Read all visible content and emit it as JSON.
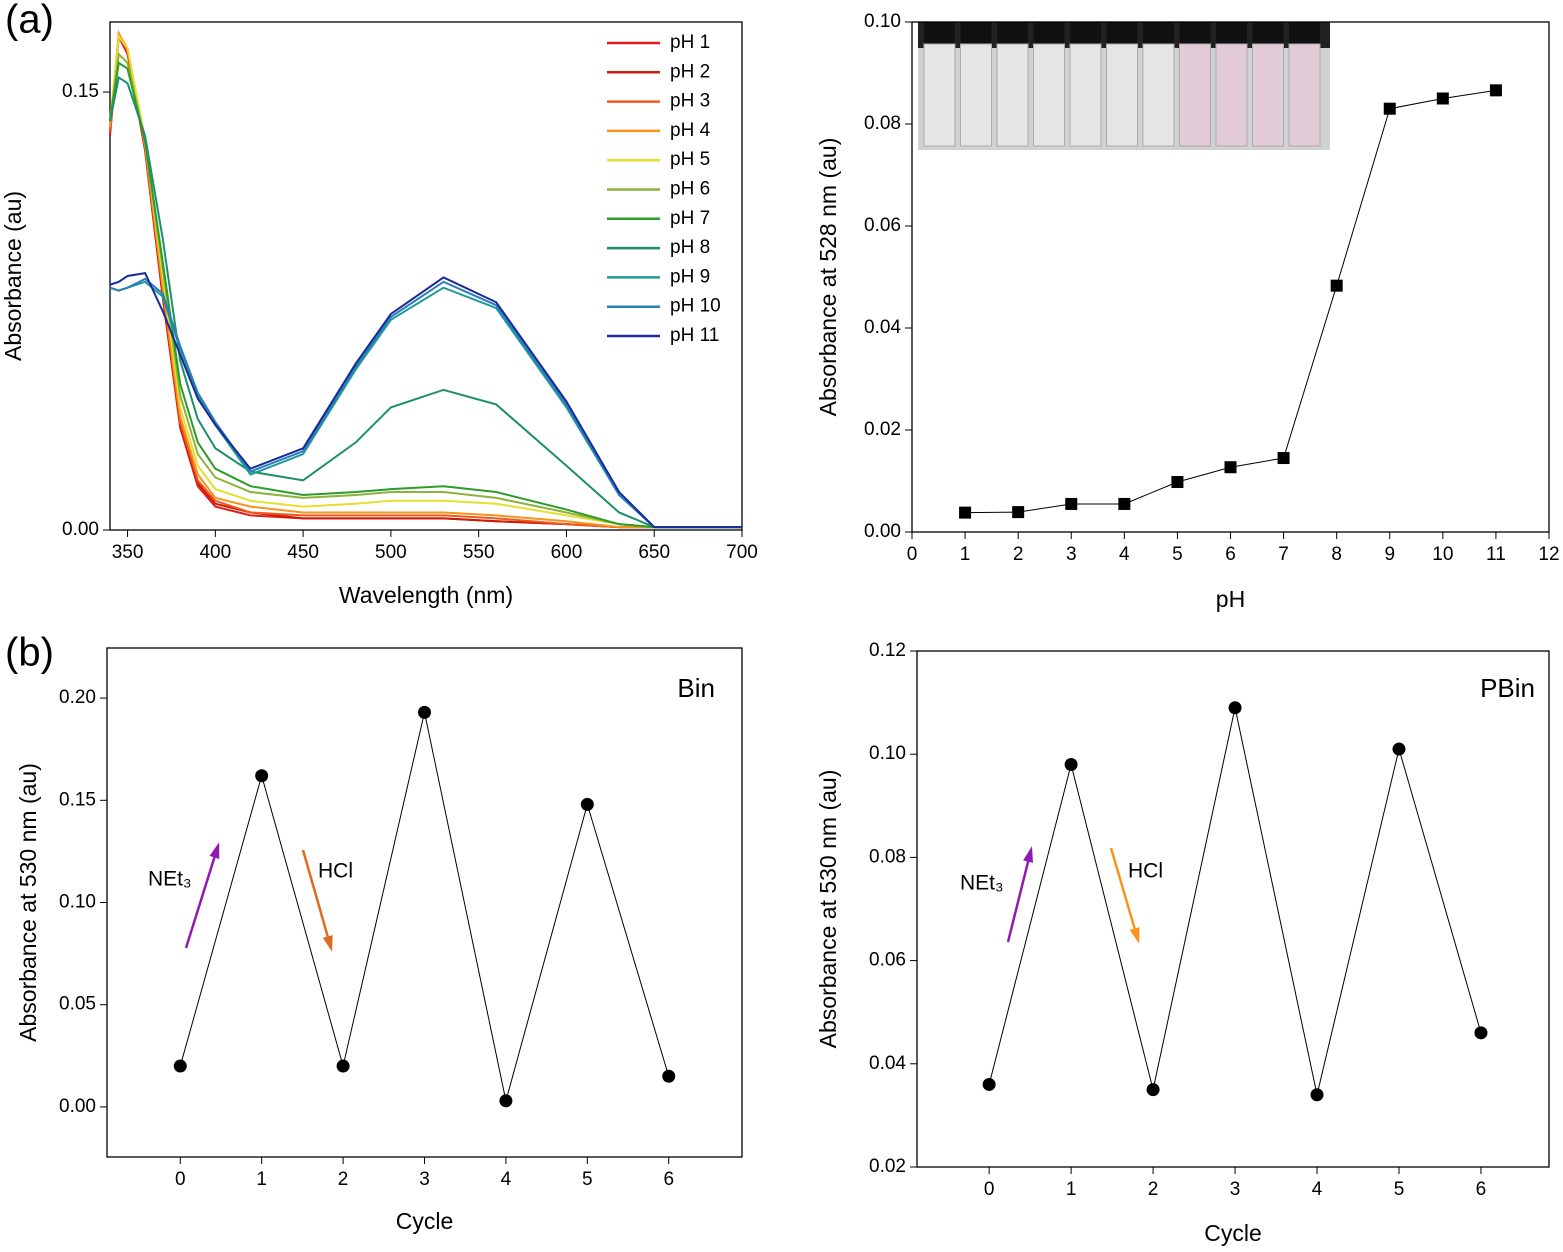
{
  "chart_data": [
    {
      "type": "line",
      "panel_label": "(a)",
      "x_label": "Wavelength (nm)",
      "y_label": "Absorbance (au)",
      "x": [
        340,
        345,
        350,
        360,
        370,
        380,
        390,
        400,
        420,
        450,
        480,
        500,
        530,
        560,
        600,
        630,
        650,
        700
      ],
      "xlim": [
        340,
        700
      ],
      "xticks": [
        350,
        400,
        450,
        500,
        550,
        600,
        650,
        700
      ],
      "ylim": [
        0,
        0.174
      ],
      "yticks": [
        {
          "value": 0,
          "label": "0.00"
        },
        {
          "value": 0.15,
          "label": "0.15"
        }
      ],
      "legend": "top-right",
      "series": [
        {
          "name": "pH 1",
          "color": "#e41a1c",
          "values": [
            0.135,
            0.169,
            0.163,
            0.13,
            0.08,
            0.035,
            0.015,
            0.008,
            0.005,
            0.004,
            0.004,
            0.004,
            0.004,
            0.003,
            0.002,
            0.001,
            0.001,
            0.001
          ]
        },
        {
          "name": "pH 2",
          "color": "#c81e0a",
          "values": [
            0.137,
            0.17,
            0.164,
            0.13,
            0.08,
            0.036,
            0.016,
            0.009,
            0.006,
            0.004,
            0.004,
            0.004,
            0.004,
            0.003,
            0.002,
            0.001,
            0.001,
            0.001
          ]
        },
        {
          "name": "pH 3",
          "color": "#f05a1a",
          "values": [
            0.137,
            0.17,
            0.164,
            0.131,
            0.082,
            0.037,
            0.017,
            0.01,
            0.006,
            0.005,
            0.005,
            0.005,
            0.005,
            0.004,
            0.002,
            0.001,
            0.001,
            0.001
          ]
        },
        {
          "name": "pH 4",
          "color": "#f7941d",
          "values": [
            0.138,
            0.17,
            0.165,
            0.132,
            0.084,
            0.039,
            0.019,
            0.011,
            0.008,
            0.006,
            0.006,
            0.006,
            0.006,
            0.005,
            0.003,
            0.001,
            0.001,
            0.001
          ]
        },
        {
          "name": "pH 5",
          "color": "#e6df2e",
          "values": [
            0.14,
            0.169,
            0.165,
            0.134,
            0.087,
            0.042,
            0.022,
            0.014,
            0.01,
            0.008,
            0.009,
            0.01,
            0.01,
            0.009,
            0.005,
            0.002,
            0.001,
            0.001
          ]
        },
        {
          "name": "pH 6",
          "color": "#8db33a",
          "values": [
            0.14,
            0.163,
            0.16,
            0.133,
            0.09,
            0.046,
            0.026,
            0.018,
            0.013,
            0.011,
            0.012,
            0.013,
            0.013,
            0.011,
            0.006,
            0.002,
            0.001,
            0.001
          ]
        },
        {
          "name": "pH 7",
          "color": "#2a9d2a",
          "values": [
            0.14,
            0.16,
            0.158,
            0.133,
            0.092,
            0.05,
            0.03,
            0.021,
            0.015,
            0.012,
            0.013,
            0.014,
            0.015,
            0.013,
            0.007,
            0.002,
            0.001,
            0.001
          ]
        },
        {
          "name": "pH 8",
          "color": "#1e8f6b",
          "values": [
            0.14,
            0.155,
            0.153,
            0.135,
            0.1,
            0.058,
            0.038,
            0.028,
            0.02,
            0.017,
            0.03,
            0.042,
            0.048,
            0.043,
            0.022,
            0.006,
            0.001,
            0.001
          ]
        },
        {
          "name": "pH 9",
          "color": "#1f9a9a",
          "values": [
            0.083,
            0.082,
            0.083,
            0.085,
            0.08,
            0.062,
            0.046,
            0.036,
            0.019,
            0.026,
            0.055,
            0.072,
            0.083,
            0.076,
            0.042,
            0.012,
            0.001,
            0.001
          ]
        },
        {
          "name": "pH 10",
          "color": "#2a7db8",
          "values": [
            0.083,
            0.082,
            0.083,
            0.086,
            0.081,
            0.063,
            0.047,
            0.037,
            0.02,
            0.027,
            0.056,
            0.073,
            0.085,
            0.077,
            0.043,
            0.012,
            0.001,
            0.001
          ]
        },
        {
          "name": "pH 11",
          "color": "#1a2a9a",
          "values": [
            0.084,
            0.085,
            0.087,
            0.088,
            0.075,
            0.06,
            0.045,
            0.036,
            0.021,
            0.028,
            0.057,
            0.074,
            0.0865,
            0.078,
            0.044,
            0.013,
            0.001,
            0.001
          ]
        }
      ]
    },
    {
      "type": "line",
      "markers": "square",
      "color": "#000000",
      "x_label": "pH",
      "y_label": "Absorbance at 528 nm (au)",
      "x": [
        1,
        2,
        3,
        4,
        5,
        6,
        7,
        8,
        9,
        10,
        11
      ],
      "values": [
        0.0038,
        0.0039,
        0.0055,
        0.0055,
        0.0098,
        0.0127,
        0.0145,
        0.0483,
        0.083,
        0.085,
        0.0866
      ],
      "xlim": [
        0,
        12
      ],
      "xticks": [
        0,
        1,
        2,
        3,
        4,
        5,
        6,
        7,
        8,
        9,
        10,
        11,
        12
      ],
      "ylim": [
        0,
        0.1
      ],
      "yticks": [
        {
          "value": 0,
          "label": "0.00"
        },
        {
          "value": 0.02,
          "label": "0.02"
        },
        {
          "value": 0.04,
          "label": "0.04"
        },
        {
          "value": 0.06,
          "label": "0.06"
        },
        {
          "value": 0.08,
          "label": "0.08"
        },
        {
          "value": 0.1,
          "label": "0.10"
        }
      ]
    },
    {
      "type": "line",
      "markers": "circle",
      "color": "#000000",
      "panel_label": "(b)",
      "x_label": "Cycle",
      "y_label": "Absorbance at 530 nm (au)",
      "x": [
        0,
        1,
        2,
        3,
        4,
        5,
        6
      ],
      "values": [
        0.02,
        0.162,
        0.02,
        0.193,
        0.003,
        0.148,
        0.015
      ],
      "xlim": [
        -0.9,
        6.9
      ],
      "xticks": [
        0,
        1,
        2,
        3,
        4,
        5,
        6
      ],
      "ylim": [
        -0.0245,
        0.2245
      ],
      "yticks": [
        {
          "value": 0,
          "label": "0.00"
        },
        {
          "value": 0.05,
          "label": "0.05"
        },
        {
          "value": 0.1,
          "label": "0.10"
        },
        {
          "value": 0.15,
          "label": "0.15"
        },
        {
          "value": 0.2,
          "label": "0.20"
        }
      ],
      "annotations": [
        {
          "text": "Bin",
          "color": "#000000"
        },
        {
          "text": "NEt₃",
          "color": "#8e1ab0"
        },
        {
          "text": "HCl",
          "color": "#e06a20"
        }
      ]
    },
    {
      "type": "line",
      "markers": "circle",
      "color": "#000000",
      "x_label": "Cycle",
      "y_label": "Absorbance at 530 nm (au)",
      "x": [
        0,
        1,
        2,
        3,
        4,
        5,
        6
      ],
      "values": [
        0.036,
        0.098,
        0.035,
        0.109,
        0.034,
        0.101,
        0.046
      ],
      "xlim": [
        -0.88,
        6.83
      ],
      "xticks": [
        0,
        1,
        2,
        3,
        4,
        5,
        6
      ],
      "ylim": [
        0.02,
        0.12
      ],
      "yticks": [
        {
          "value": 0.02,
          "label": "0.02"
        },
        {
          "value": 0.04,
          "label": "0.04"
        },
        {
          "value": 0.06,
          "label": "0.06"
        },
        {
          "value": 0.08,
          "label": "0.08"
        },
        {
          "value": 0.1,
          "label": "0.10"
        },
        {
          "value": 0.12,
          "label": "0.12"
        }
      ],
      "annotations": [
        {
          "text": "PBin",
          "color": "#000000"
        },
        {
          "text": "NEt₃",
          "color": "#8e1ab0"
        },
        {
          "text": "HCl",
          "color": "#f7941d"
        }
      ]
    }
  ]
}
